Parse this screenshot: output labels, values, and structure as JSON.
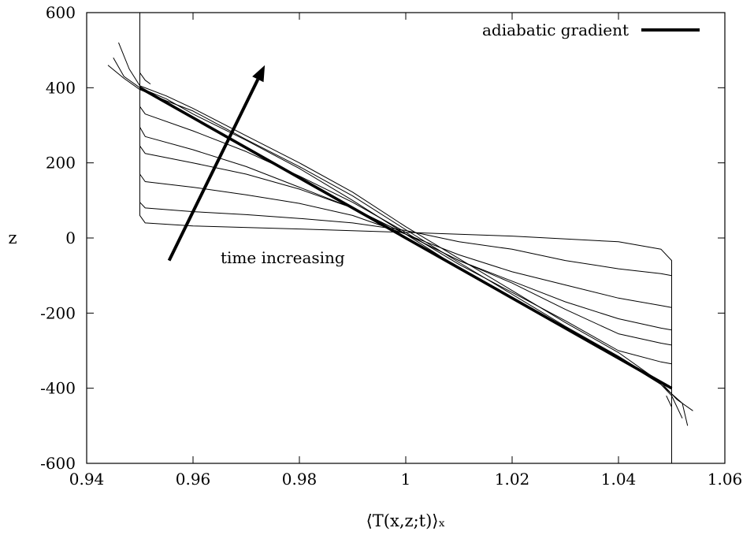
{
  "chart_data": {
    "type": "line",
    "title": "",
    "xlabel": "⟨T(x,z;t)⟩ₓ",
    "ylabel": "z",
    "xlim": [
      0.94,
      1.06
    ],
    "ylim": [
      -600,
      600
    ],
    "x_ticks": [
      0.94,
      0.96,
      0.98,
      1.0,
      1.02,
      1.04,
      1.06
    ],
    "x_tick_labels": [
      "0.94",
      "0.96",
      "0.98",
      "1",
      "1.02",
      "1.04",
      "1.06"
    ],
    "y_ticks": [
      -600,
      -400,
      -200,
      0,
      200,
      400,
      600
    ],
    "y_tick_labels": [
      "-600",
      "-400",
      "-200",
      "0",
      "200",
      "400",
      "600"
    ],
    "grid": false,
    "legend": {
      "position": "top-right",
      "entries": [
        "adiabatic gradient"
      ]
    },
    "annotation": {
      "text": "time increasing",
      "arrow_from": [
        0.9555,
        -60
      ],
      "arrow_to": [
        0.9735,
        460
      ]
    },
    "series": [
      {
        "name": "adiabatic gradient",
        "style": "thick",
        "x": [
          0.95,
          1.05
        ],
        "y": [
          400,
          -400
        ]
      },
      {
        "style": "thin",
        "x": [
          0.95,
          0.95,
          0.951,
          0.96,
          0.98,
          1.0,
          1.02,
          1.04,
          1.048,
          1.05,
          1.05
        ],
        "y": [
          600,
          60,
          40,
          32,
          24,
          15,
          5,
          -10,
          -30,
          -60,
          -600
        ]
      },
      {
        "style": "thin",
        "x": [
          0.95,
          0.95,
          0.951,
          0.96,
          0.97,
          0.98,
          0.99,
          1.0,
          1.01,
          1.02,
          1.03,
          1.04,
          1.048,
          1.05,
          1.05
        ],
        "y": [
          600,
          95,
          80,
          70,
          62,
          52,
          40,
          20,
          -10,
          -30,
          -60,
          -82,
          -95,
          -100,
          -600
        ]
      },
      {
        "style": "thin",
        "x": [
          0.95,
          0.95,
          0.951,
          0.96,
          0.97,
          0.98,
          0.99,
          1.0,
          1.01,
          1.02,
          1.03,
          1.04,
          1.048,
          1.05,
          1.05
        ],
        "y": [
          600,
          170,
          150,
          135,
          115,
          92,
          60,
          10,
          -45,
          -90,
          -125,
          -160,
          -180,
          -185,
          -600
        ]
      },
      {
        "style": "thin",
        "x": [
          0.95,
          0.95,
          0.951,
          0.96,
          0.97,
          0.98,
          0.99,
          1.0,
          1.01,
          1.02,
          1.03,
          1.04,
          1.048,
          1.05,
          1.05
        ],
        "y": [
          600,
          245,
          225,
          200,
          170,
          130,
          80,
          10,
          -60,
          -115,
          -170,
          -215,
          -240,
          -245,
          -600
        ]
      },
      {
        "style": "thin",
        "x": [
          0.95,
          0.95,
          0.951,
          0.96,
          0.97,
          0.98,
          0.99,
          1.0,
          1.01,
          1.02,
          1.03,
          1.04,
          1.048,
          1.05,
          1.05
        ],
        "y": [
          600,
          295,
          270,
          235,
          190,
          135,
          80,
          10,
          -60,
          -120,
          -190,
          -255,
          -280,
          -285,
          -600
        ]
      },
      {
        "style": "thin",
        "x": [
          0.95,
          0.95,
          0.951,
          0.96,
          0.97,
          0.98,
          0.99,
          1.0,
          1.01,
          1.02,
          1.03,
          1.04,
          1.048,
          1.05,
          1.05
        ],
        "y": [
          600,
          350,
          330,
          285,
          230,
          165,
          95,
          15,
          -70,
          -145,
          -220,
          -300,
          -330,
          -335,
          -600
        ]
      },
      {
        "style": "thin",
        "x": [
          0.945,
          0.947,
          0.95,
          0.955,
          0.96,
          0.97,
          0.98,
          0.99,
          1.0,
          1.01,
          1.02,
          1.03,
          1.04,
          1.048,
          1.052,
          1.053
        ],
        "y": [
          480,
          430,
          400,
          370,
          330,
          260,
          185,
          100,
          10,
          -80,
          -160,
          -240,
          -320,
          -390,
          -440,
          -500
        ]
      },
      {
        "style": "thin",
        "x": [
          0.946,
          0.948,
          0.95,
          0.955,
          0.96,
          0.97,
          0.98,
          0.99,
          1.0,
          1.01,
          1.02,
          1.03,
          1.04,
          1.047,
          1.05,
          1.052
        ],
        "y": [
          520,
          450,
          405,
          378,
          345,
          272,
          200,
          122,
          30,
          -55,
          -140,
          -225,
          -305,
          -375,
          -420,
          -480
        ]
      },
      {
        "style": "thin",
        "x": [
          0.944,
          0.947,
          0.95,
          0.955,
          0.96,
          0.97,
          0.98,
          0.99,
          1.0,
          1.01,
          1.02,
          1.03,
          1.04,
          1.048,
          1.051,
          1.054
        ],
        "y": [
          460,
          425,
          395,
          365,
          338,
          262,
          190,
          112,
          22,
          -65,
          -150,
          -235,
          -315,
          -385,
          -430,
          -460
        ]
      },
      {
        "style": "thin",
        "x": [
          0.95,
          0.95,
          0.951,
          0.952
        ],
        "y": [
          600,
          440,
          420,
          410
        ]
      },
      {
        "style": "thin",
        "x": [
          1.049,
          1.05,
          1.05,
          1.05
        ],
        "y": [
          -420,
          -450,
          -520,
          -600
        ]
      }
    ]
  }
}
